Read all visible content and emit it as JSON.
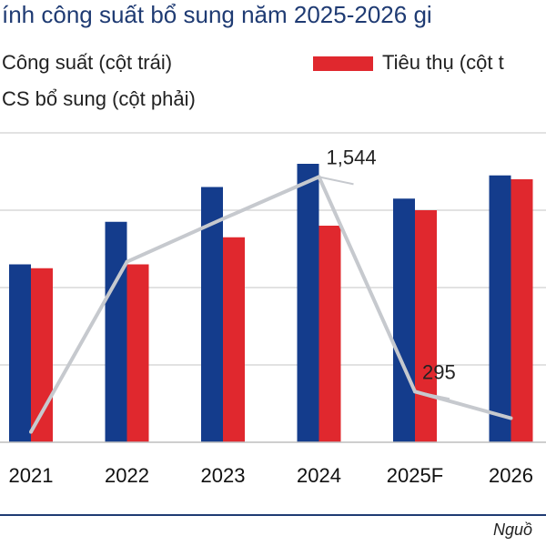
{
  "chart_data": {
    "type": "bar+line",
    "title": "ính công suất bổ sung năm 2025-2026 gi",
    "categories": [
      "2021",
      "2022",
      "2023",
      "2024",
      "2025F",
      "2026"
    ],
    "series": [
      {
        "name": "Công suất (cột trái)",
        "type": "bar",
        "axis": "left",
        "color": "#143c8c",
        "values": [
          46,
          57,
          66,
          72,
          63,
          69
        ]
      },
      {
        "name": "Tiêu thụ (cột t",
        "type": "bar",
        "axis": "left",
        "color": "#e0282e",
        "values": [
          45,
          46,
          53,
          56,
          60,
          68
        ]
      },
      {
        "name": "CS bổ sung (cột phải)",
        "type": "line",
        "axis": "right",
        "color": "#c6c9ce",
        "values": [
          60,
          1050,
          1300,
          1544,
          295,
          140
        ]
      }
    ],
    "data_labels": [
      {
        "series": 2,
        "index": 3,
        "text": "1,544"
      },
      {
        "series": 2,
        "index": 4,
        "text": "295"
      }
    ],
    "ylim_left": [
      0,
      80
    ],
    "ylim_right": [
      0,
      1800
    ],
    "grid": true,
    "legend_position": "top",
    "source_text": "Nguồ"
  }
}
